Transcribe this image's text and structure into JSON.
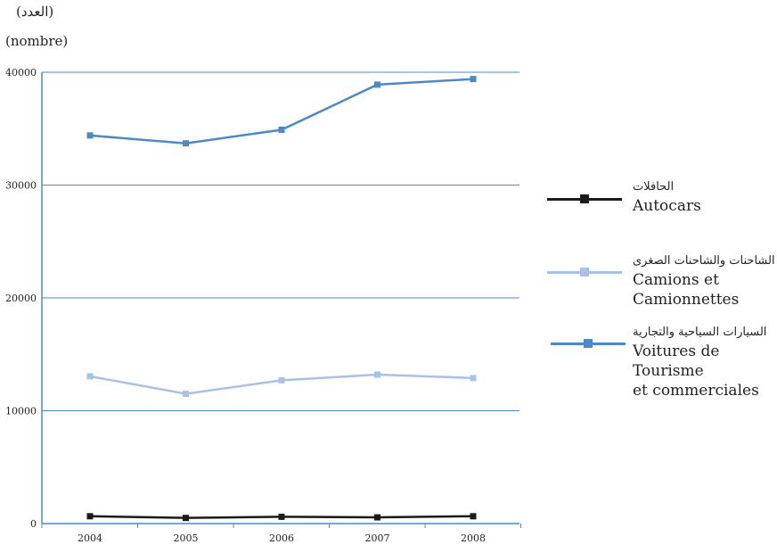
{
  "unit_label_ar": "(العدد)",
  "unit_label_fr": "(nombre)",
  "chart_data": {
    "type": "line",
    "x": [
      "2004",
      "2005",
      "2006",
      "2007",
      "2008"
    ],
    "ylim": [
      0,
      40000
    ],
    "yticks": [
      "0",
      "10000",
      "20000",
      "30000",
      "40000"
    ],
    "grid": "horizontal",
    "legend_position": "right",
    "series": [
      {
        "name": "Voitures de Tourisme et commerciales",
        "name_ar": "السيارات السياحية والتجارية",
        "name_fr_line1": "Voitures de Tourisme",
        "name_fr_line2": "et commerciales",
        "color": "#4f88c6",
        "values": [
          34400,
          33700,
          34900,
          38900,
          39400
        ]
      },
      {
        "name": "Camions et Camionnettes",
        "name_ar": "الشاحنات والشاحنات الصغرى",
        "name_fr_line1": "Camions et Camionnettes",
        "color": "#a7c2e4",
        "values": [
          13050,
          11500,
          12700,
          13200,
          12900
        ]
      },
      {
        "name": "Autocars",
        "name_ar": "الحافلات",
        "name_fr_line1": "Autocars",
        "color": "#1a1a1a",
        "values": [
          650,
          500,
          600,
          550,
          650
        ]
      }
    ]
  }
}
